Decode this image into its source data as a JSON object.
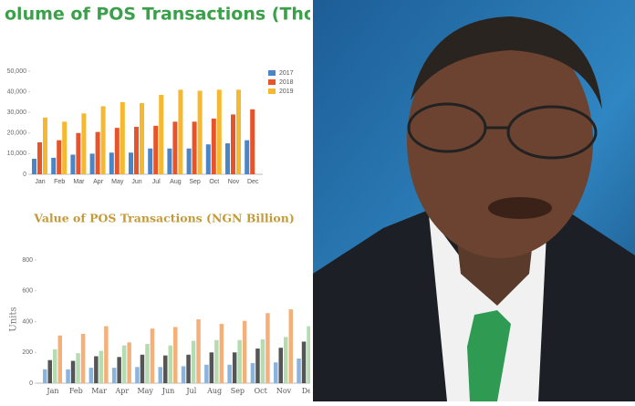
{
  "chart_data": [
    {
      "type": "bar",
      "title": "olume of POS Transactions (Thousand)",
      "categories": [
        "Jan",
        "Feb",
        "Mar",
        "Apr",
        "May",
        "Jun",
        "Jul",
        "Aug",
        "Sep",
        "Oct",
        "Nov",
        "Dec"
      ],
      "series": [
        {
          "name": "2017",
          "color": "#4a86c5",
          "values": [
            7500,
            8000,
            9500,
            10000,
            10500,
            10500,
            12500,
            12500,
            12500,
            14500,
            15000,
            16500
          ]
        },
        {
          "name": "2018",
          "color": "#e8532a",
          "values": [
            15500,
            16500,
            20000,
            20500,
            22500,
            23000,
            23500,
            25500,
            25500,
            27000,
            29000,
            31500
          ]
        },
        {
          "name": "2019",
          "color": "#f5b82e",
          "values": [
            27500,
            25500,
            29500,
            33000,
            35000,
            34500,
            38500,
            41000,
            40500,
            41000,
            41000,
            null
          ]
        }
      ],
      "ylim": [
        0,
        50000
      ],
      "yticks": [
        {
          "value": 0,
          "label": "0"
        },
        {
          "value": 10000,
          "label": "10,000"
        },
        {
          "value": 20000,
          "label": "20,000"
        },
        {
          "value": 30000,
          "label": "30,000"
        },
        {
          "value": 40000,
          "label": "40,000"
        },
        {
          "value": 50000,
          "label": "50,000"
        }
      ],
      "grid": false,
      "legend": "right"
    },
    {
      "type": "bar",
      "title": "Value of POS Transactions (NGN Billion)",
      "y_label": "Units",
      "categories": [
        "Jan",
        "Feb",
        "Mar",
        "Apr",
        "May",
        "Jun",
        "Jul",
        "Aug",
        "Sep",
        "Oct",
        "Nov",
        "De"
      ],
      "series": [
        {
          "color": "#8ab4dd",
          "values": [
            90,
            90,
            100,
            100,
            105,
            105,
            110,
            120,
            120,
            130,
            135,
            160
          ]
        },
        {
          "color": "#555555",
          "values": [
            150,
            145,
            175,
            170,
            185,
            180,
            185,
            200,
            200,
            225,
            230,
            270
          ]
        },
        {
          "color": "#b5dcb0",
          "values": [
            220,
            195,
            210,
            245,
            255,
            245,
            275,
            280,
            280,
            285,
            300,
            370
          ]
        },
        {
          "color": "#f4b07a",
          "values": [
            310,
            320,
            370,
            265,
            355,
            365,
            415,
            385,
            405,
            455,
            480,
            null
          ]
        }
      ],
      "ylim": [
        0,
        800
      ],
      "yticks": [
        0,
        200,
        400,
        600,
        800
      ],
      "grid": false
    }
  ]
}
